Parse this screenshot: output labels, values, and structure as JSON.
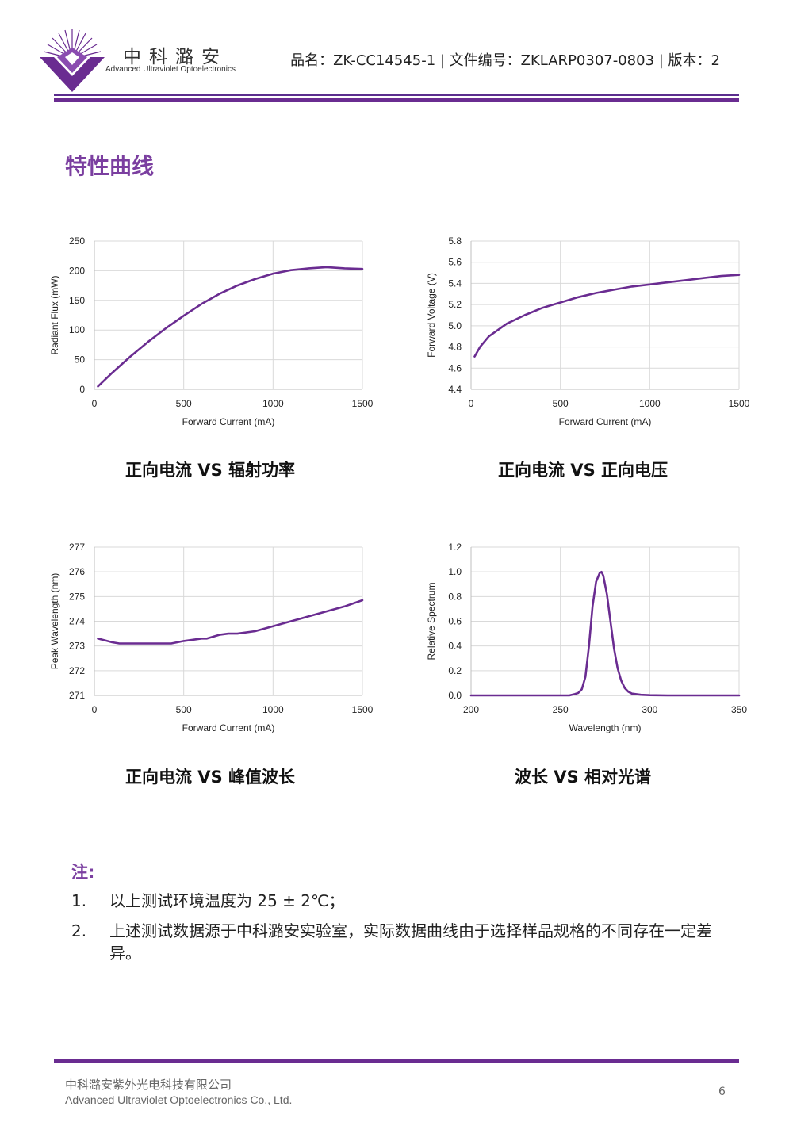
{
  "header": {
    "brand_cn": "中科潞安",
    "brand_en": "Advanced Ultraviolet Optoelectronics",
    "doc_info": "品名：ZK-CC14545-1 | 文件编号：ZKLARP0307-0803 | 版本：2",
    "accent_color": "#6a2c91"
  },
  "section_title": "特性曲线",
  "captions": [
    "正向电流 VS 辐射功率",
    "正向电流 VS 正向电压",
    "正向电流 VS 峰值波长",
    "波长 VS 相对光谱"
  ],
  "chart_data": [
    {
      "type": "line",
      "xlabel": "Forward Current (mA)",
      "ylabel": "Radiant Flux (mW)",
      "xlim": [
        0,
        1500
      ],
      "ylim": [
        0,
        250
      ],
      "xticks": [
        0,
        500,
        1000,
        1500
      ],
      "yticks": [
        0,
        50,
        100,
        150,
        200,
        250
      ],
      "grid": true,
      "line_color": "#6a2c91",
      "x": [
        20,
        100,
        200,
        300,
        400,
        500,
        600,
        700,
        800,
        900,
        1000,
        1100,
        1200,
        1300,
        1400,
        1500
      ],
      "y": [
        5,
        28,
        55,
        80,
        103,
        124,
        144,
        161,
        175,
        186,
        195,
        201,
        204,
        206,
        204,
        203
      ]
    },
    {
      "type": "line",
      "xlabel": "Forward Current (mA)",
      "ylabel": "Forward Voltage (V)",
      "xlim": [
        0,
        1500
      ],
      "ylim": [
        4.4,
        5.8
      ],
      "xticks": [
        0,
        500,
        1000,
        1500
      ],
      "yticks": [
        "4.4",
        "4.6",
        "4.8",
        "5.0",
        "5.2",
        "5.4",
        "5.6",
        "5.8"
      ],
      "grid": true,
      "line_color": "#6a2c91",
      "x": [
        20,
        50,
        100,
        150,
        200,
        300,
        400,
        500,
        600,
        700,
        800,
        900,
        1000,
        1100,
        1200,
        1300,
        1400,
        1500
      ],
      "y": [
        4.71,
        4.8,
        4.9,
        4.96,
        5.02,
        5.1,
        5.17,
        5.22,
        5.27,
        5.31,
        5.34,
        5.37,
        5.39,
        5.41,
        5.43,
        5.45,
        5.47,
        5.48
      ]
    },
    {
      "type": "line",
      "xlabel": "Forward Current (mA)",
      "ylabel": "Peak Wavelength (nm)",
      "xlim": [
        0,
        1500
      ],
      "ylim": [
        271,
        277
      ],
      "xticks": [
        0,
        500,
        1000,
        1500
      ],
      "yticks": [
        271,
        272,
        273,
        274,
        275,
        276,
        277
      ],
      "grid": true,
      "line_color": "#6a2c91",
      "x": [
        20,
        100,
        140,
        200,
        300,
        400,
        430,
        500,
        600,
        630,
        700,
        750,
        800,
        900,
        1000,
        1100,
        1200,
        1300,
        1400,
        1500
      ],
      "y": [
        273.3,
        273.15,
        273.1,
        273.1,
        273.1,
        273.1,
        273.1,
        273.2,
        273.3,
        273.3,
        273.45,
        273.5,
        273.5,
        273.6,
        273.8,
        274.0,
        274.2,
        274.4,
        274.6,
        274.85
      ]
    },
    {
      "type": "line",
      "xlabel": "Wavelength (nm)",
      "ylabel": "Relative Spectrum",
      "xlim": [
        200,
        350
      ],
      "ylim": [
        0,
        1.2
      ],
      "xticks": [
        200,
        250,
        300,
        350
      ],
      "yticks": [
        "0.0",
        "0.2",
        "0.4",
        "0.6",
        "0.8",
        "1.0",
        "1.2"
      ],
      "grid": true,
      "line_color": "#6a2c91",
      "x": [
        200,
        250,
        255,
        258,
        260,
        262,
        264,
        266,
        268,
        270,
        272,
        273,
        274,
        276,
        278,
        280,
        282,
        284,
        286,
        288,
        290,
        295,
        300,
        310,
        350
      ],
      "y": [
        0.0,
        0.0,
        0.0,
        0.01,
        0.02,
        0.05,
        0.15,
        0.4,
        0.72,
        0.92,
        0.99,
        1.0,
        0.97,
        0.82,
        0.6,
        0.38,
        0.22,
        0.12,
        0.06,
        0.03,
        0.015,
        0.005,
        0.002,
        0.0,
        0.0
      ]
    }
  ],
  "notes": {
    "title": "注:",
    "items": [
      {
        "num": "1.",
        "text": "以上测试环境温度为 25 ± 2℃；"
      },
      {
        "num": "2.",
        "text": "上述测试数据源于中科潞安实验室，实际数据曲线由于选择样品规格的不同存在一定差异。"
      }
    ]
  },
  "footer": {
    "company_cn": "中科潞安紫外光电科技有限公司",
    "company_en": "Advanced Ultraviolet Optoelectronics Co., Ltd.",
    "page": "6"
  }
}
